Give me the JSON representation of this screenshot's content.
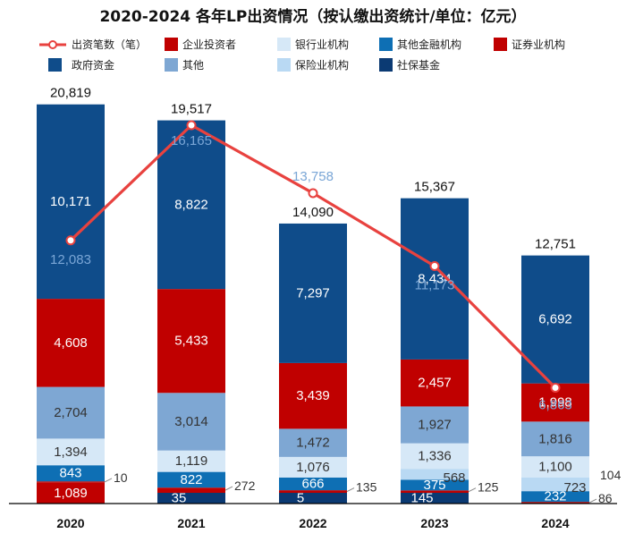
{
  "chart_data": {
    "type": "bar",
    "title": "2020-2024 各年LP出资情况（按认缴出资统计/单位：亿元）",
    "categories": [
      "2020",
      "2021",
      "2022",
      "2023",
      "2024"
    ],
    "stacked": true,
    "legend": "top",
    "legend_order": [
      "count",
      "企业投资者",
      "银行业机构",
      "其他金融机构",
      "证券业机构",
      "政府资金",
      "其他",
      "保险业机构",
      "社保基金"
    ],
    "series": [
      {
        "name": "社保基金",
        "color": "#0b3a73",
        "values": [
          0,
          35,
          5,
          145,
          0
        ],
        "labels": [
          null,
          "35",
          "5",
          "145",
          null
        ]
      },
      {
        "name": "企业投资者",
        "color": "#c00000",
        "values": [
          1089,
          0,
          0,
          0,
          0
        ],
        "labels": [
          "1,089",
          null,
          null,
          null,
          null
        ]
      },
      {
        "name": "证券业机构",
        "color": "#c00000",
        "values": [
          10,
          272,
          135,
          125,
          86
        ],
        "labels": [
          "10",
          "272",
          "135",
          "125",
          "86"
        ],
        "outside_label": true
      },
      {
        "name": "其他金融机构",
        "color": "#0e6fb4",
        "values": [
          843,
          822,
          666,
          375,
          232
        ],
        "labels": [
          "843",
          "822",
          "666",
          "375",
          "232"
        ]
      },
      {
        "name": "保险业机构",
        "color": "#b9d9f3",
        "values": [
          0,
          0,
          0,
          568,
          723
        ],
        "labels": [
          null,
          null,
          null,
          "568",
          "723"
        ]
      },
      {
        "name": "银行业机构",
        "color": "#d6e8f7",
        "values": [
          1394,
          1119,
          1076,
          1336,
          1100
        ],
        "labels": [
          "1,394",
          "1,119",
          "1,076",
          "1,336",
          "1,100"
        ]
      },
      {
        "name": "其他",
        "color": "#7ea7d3",
        "values": [
          2704,
          3014,
          1472,
          1927,
          1816
        ],
        "labels": [
          "2,704",
          "3,014",
          "1,472",
          "1,927",
          "1,816"
        ]
      },
      {
        "name": "企业投资者",
        "color": "#c00000",
        "values": [
          4608,
          5433,
          3439,
          2457,
          1998
        ],
        "labels": [
          "4,608",
          "5,433",
          "3,439",
          "2,457",
          "1,998"
        ]
      },
      {
        "name": "政府资金",
        "color": "#0f4c8a",
        "values": [
          10171,
          8822,
          7297,
          8434,
          6692
        ],
        "labels": [
          "10,171",
          "8,822",
          "7,297",
          "8,434",
          "6,692"
        ]
      }
    ],
    "extra_outside_labels": [
      {
        "category": "2024",
        "text": "104"
      }
    ],
    "totals": [
      "20,819",
      "19,517",
      "14,090",
      "15,367",
      "12,751"
    ],
    "line": {
      "name": "出资笔数（笔）",
      "color": "#e8423f",
      "values": [
        12083,
        16165,
        13758,
        11173,
        6863
      ],
      "labels": [
        "12,083",
        "16,165",
        "13,758",
        "11,173",
        "6,863"
      ]
    },
    "legend_colors": {
      "企业投资者": "#c00000",
      "银行业机构": "#d6e8f7",
      "其他金融机构": "#0e6fb4",
      "证券业机构": "#c00000",
      "政府资金": "#0f4c8a",
      "其他": "#7ea7d3",
      "保险业机构": "#b9d9f3",
      "社保基金": "#0b3a73"
    }
  }
}
